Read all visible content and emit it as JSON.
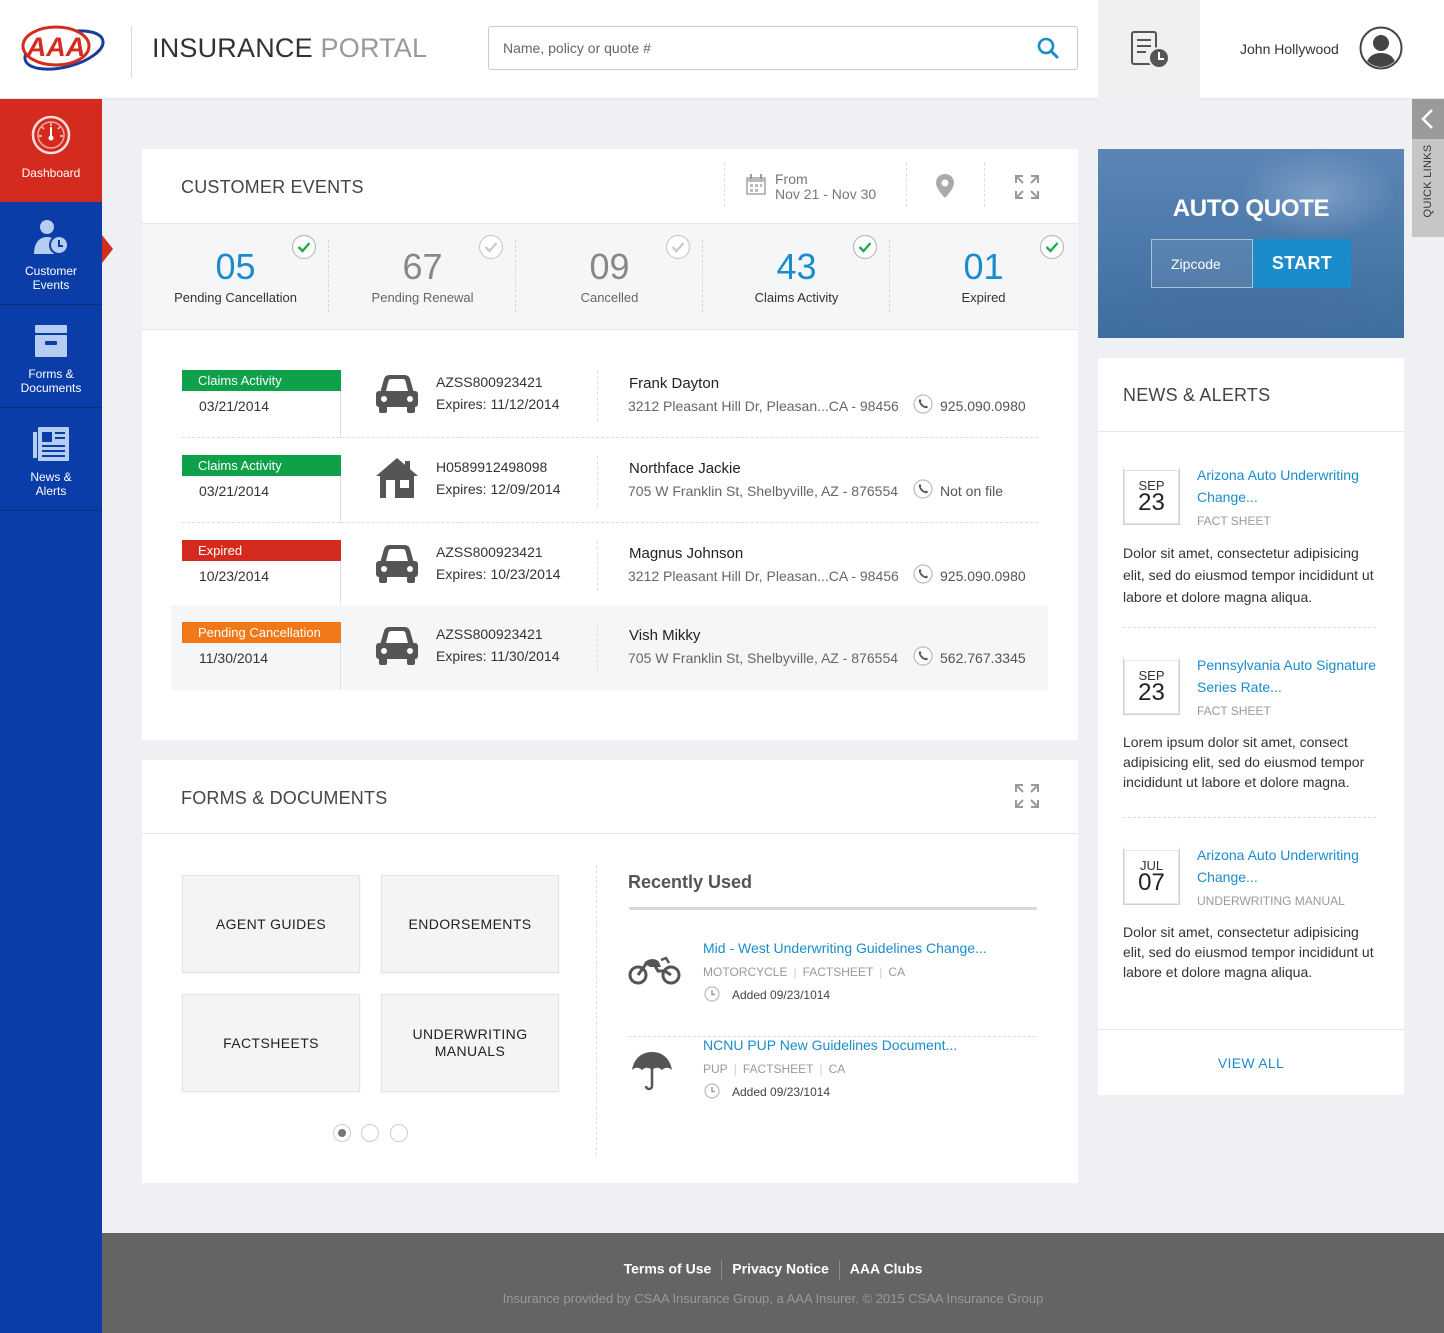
{
  "header": {
    "title_bold": "INSURANCE",
    "title_light": "PORTAL",
    "search_placeholder": "Name, policy or quote #",
    "user_name": "John Hollywood"
  },
  "sidebar": {
    "items": [
      {
        "label": "Dashboard",
        "icon": "speedometer-icon",
        "active": true
      },
      {
        "label_line1": "Customer",
        "label_line2": "Events",
        "icon": "customer-clock-icon"
      },
      {
        "label_line1": "Forms &",
        "label_line2": "Documents",
        "icon": "file-box-icon"
      },
      {
        "label_line1": "News &",
        "label_line2": "Alerts",
        "icon": "newspaper-icon"
      }
    ]
  },
  "customer_events": {
    "title": "CUSTOMER EVENTS",
    "from_label": "From",
    "date_range": "Nov 21 - Nov 30",
    "stats": [
      {
        "number": "05",
        "label": "Pending Cancellation",
        "active": true
      },
      {
        "number": "67",
        "label": "Pending Renewal",
        "active": false
      },
      {
        "number": "09",
        "label": "Cancelled",
        "active": false
      },
      {
        "number": "43",
        "label": "Claims Activity",
        "active": true
      },
      {
        "number": "01",
        "label": "Expired",
        "active": true
      }
    ],
    "events": [
      {
        "status": "Claims Activity",
        "status_color": "#0fa04a",
        "date": "03/21/2014",
        "vehicle": "car-icon",
        "policy": "AZSS800923421",
        "expires": "Expires: 11/12/2014",
        "name": "Frank Dayton",
        "address": "3212 Pleasant Hill Dr, Pleasan...CA - 98456",
        "phone": "925.090.0980"
      },
      {
        "status": "Claims Activity",
        "status_color": "#0fa04a",
        "date": "03/21/2014",
        "vehicle": "house-icon",
        "policy": "H0589912498098",
        "expires": "Expires: 12/09/2014",
        "name": "Northface Jackie",
        "address": "705 W Franklin St, Shelbyville,  AZ - 876554",
        "phone": "Not on file"
      },
      {
        "status": "Expired",
        "status_color": "#d52b1e",
        "date": "10/23/2014",
        "vehicle": "car-icon",
        "policy": "AZSS800923421",
        "expires": "Expires: 10/23/2014",
        "name": "Magnus Johnson",
        "address": "3212 Pleasant Hill Dr, Pleasan...CA - 98456",
        "phone": "925.090.0980"
      },
      {
        "status": "Pending Cancellation",
        "status_color": "#f07818",
        "date": "11/30/2014",
        "vehicle": "car-icon",
        "policy": "AZSS800923421",
        "expires": "Expires: 11/30/2014",
        "name": "Vish Mikky",
        "address": "705 W Franklin St, Shelbyville,  AZ - 876554",
        "phone": "562.767.3345"
      }
    ]
  },
  "forms": {
    "title": "FORMS & DOCUMENTS",
    "tiles": [
      "AGENT GUIDES",
      "ENDORSEMENTS",
      "FACTSHEETS",
      "UNDERWRITING MANUALS"
    ],
    "recent_title": "Recently Used",
    "recent": [
      {
        "icon": "motorcycle-icon",
        "title": "Mid - West Underwriting Guidelines Change...",
        "tags": [
          "MOTORCYCLE",
          "FACTSHEET",
          "CA"
        ],
        "added": "Added 09/23/1014"
      },
      {
        "icon": "umbrella-icon",
        "title": "NCNU PUP New Guidelines Document...",
        "tags": [
          "PUP",
          "FACTSHEET",
          "CA"
        ],
        "added": "Added 09/23/1014"
      }
    ]
  },
  "auto_quote": {
    "title": "AUTO QUOTE",
    "zip_placeholder": "Zipcode",
    "start_label": "START"
  },
  "news": {
    "title": "NEWS & ALERTS",
    "items": [
      {
        "month": "SEP",
        "day": "23",
        "title": "Arizona Auto Underwriting Change...",
        "tag": "FACT SHEET",
        "body": "Dolor sit amet, consectetur adipisicing elit, sed do eiusmod tempor incididunt ut labore et dolore magna aliqua."
      },
      {
        "month": "SEP",
        "day": "23",
        "title": "Pennsylvania Auto Signature Series Rate...",
        "tag": "FACT SHEET",
        "body": "Lorem ipsum dolor sit amet, consect adipisicing elit, sed do eiusmod tempor incididunt ut labore et dolore magna."
      },
      {
        "month": "JUL",
        "day": "07",
        "title": "Arizona Auto Underwriting Change...",
        "tag": "UNDERWRITING MANUAL",
        "body": "Dolor sit amet, consectetur adipisicing elit, sed do eiusmod tempor incididunt ut labore et dolore magna aliqua."
      }
    ],
    "view_all": "VIEW ALL"
  },
  "quick_links": "QUICK LINKS",
  "footer": {
    "links": [
      "Terms of Use",
      "Privacy Notice",
      "AAA Clubs"
    ],
    "copyright": "Insurance provided by CSAA Insurance Group, a AAA Insurer. © 2015 CSAA Insurance Group"
  },
  "colors": {
    "brand_red": "#d52b1e",
    "brand_blue": "#0a3da8",
    "accent": "#1a8ccc"
  }
}
